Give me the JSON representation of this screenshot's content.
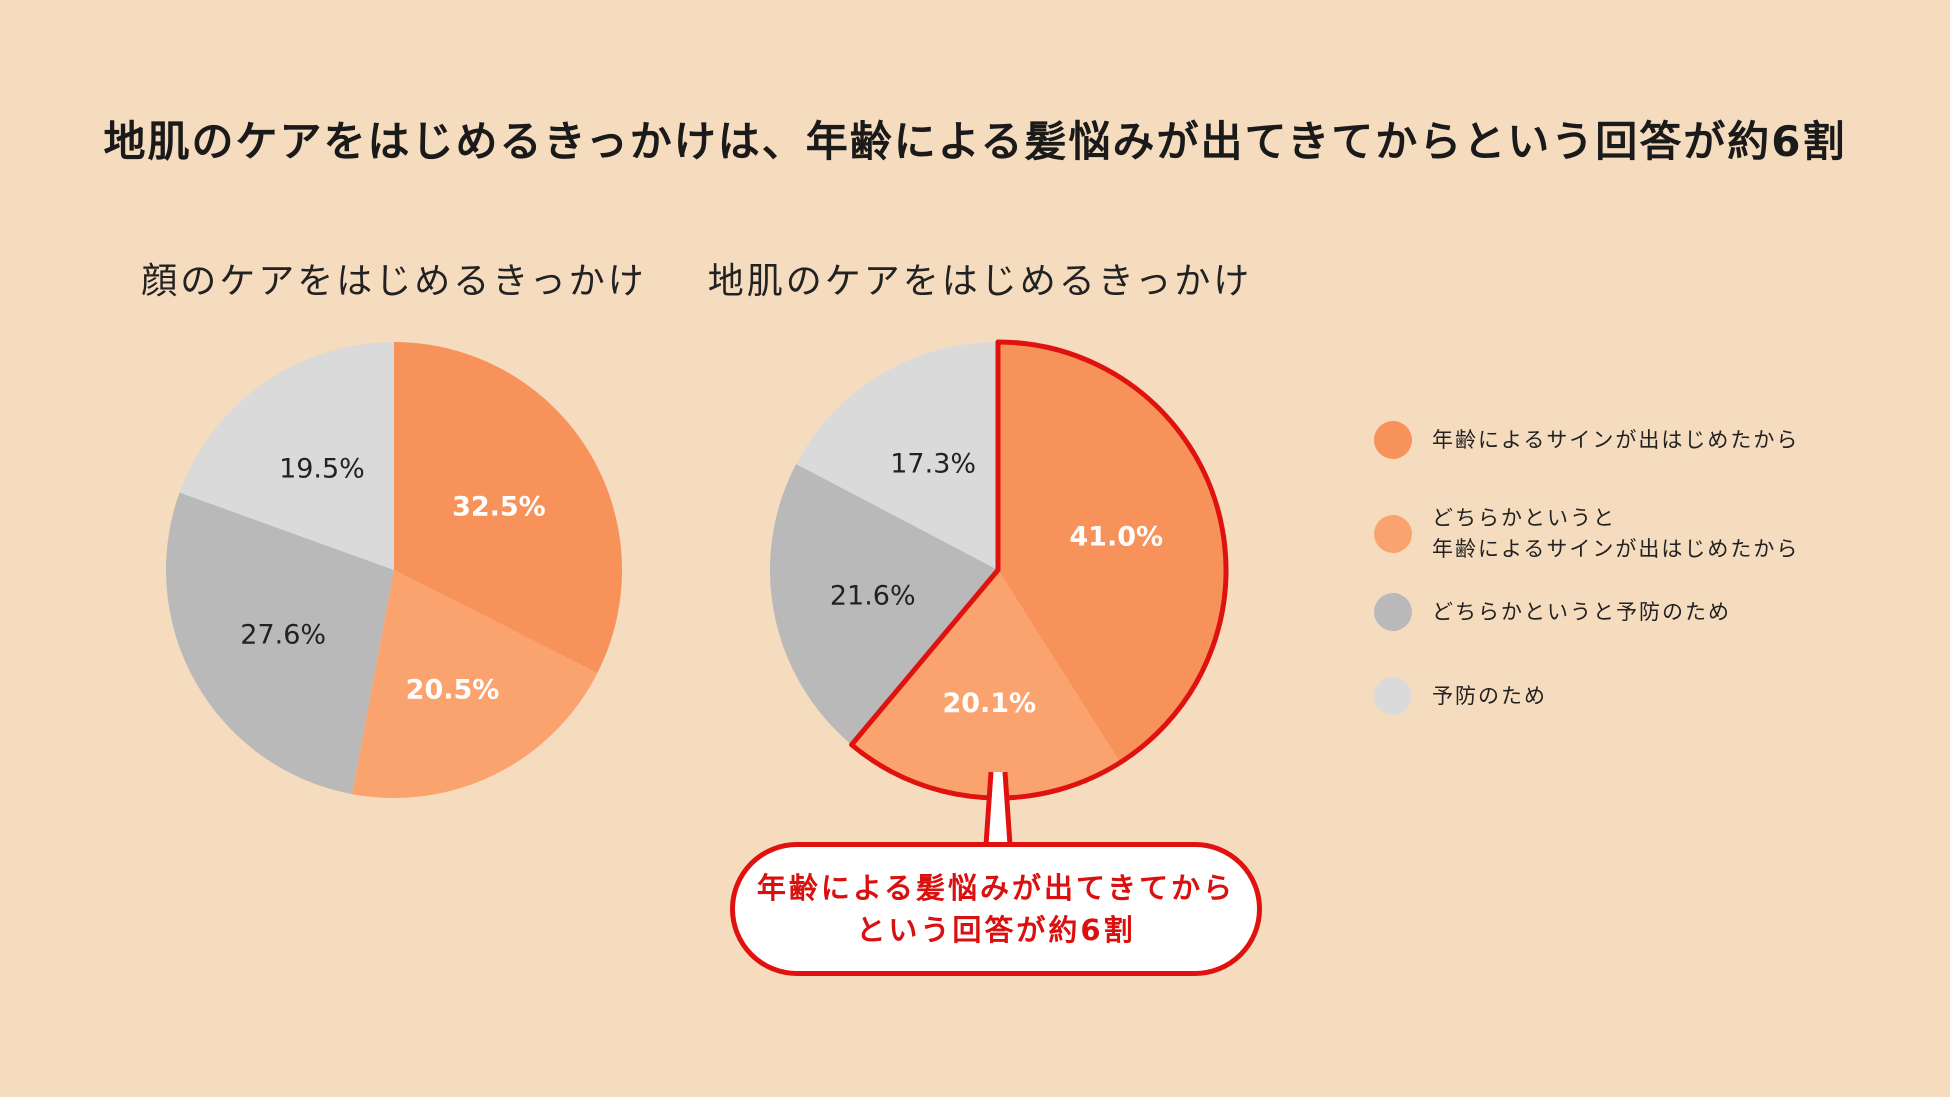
{
  "title": "地肌のケアをはじめるきっかけは、年齢による髪悩みが出てきてからという回答が約6割",
  "chart_data": [
    {
      "type": "pie",
      "title": "顔のケアをはじめるきっかけ",
      "labels": [
        "年齢によるサインが出はじめたから",
        "どちらかというと年齢によるサインが出はじめたから",
        "どちらかというと予防のため",
        "予防のため"
      ],
      "values": [
        32.5,
        20.5,
        27.6,
        19.5
      ],
      "value_labels": [
        "32.5%",
        "20.5%",
        "27.6%",
        "19.5%"
      ],
      "colors": [
        "#f7925a",
        "#fba36f",
        "#b9b9b9",
        "#dadada"
      ]
    },
    {
      "type": "pie",
      "title": "地肌のケアをはじめるきっかけ",
      "labels": [
        "年齢によるサインが出はじめたから",
        "どちらかというと年齢によるサインが出はじめたから",
        "どちらかというと予防のため",
        "予防のため"
      ],
      "values": [
        41.0,
        20.1,
        21.6,
        17.3
      ],
      "value_labels": [
        "41.0%",
        "20.1%",
        "21.6%",
        "17.3%"
      ],
      "colors": [
        "#f7925a",
        "#fba36f",
        "#b9b9b9",
        "#dadada"
      ],
      "highlight_color": "#e0120f"
    }
  ],
  "legend": [
    {
      "line1": "年齢によるサインが出はじめたから",
      "line2": "",
      "color": "#f7925a"
    },
    {
      "line1": "どちらかというと",
      "line2": "年齢によるサインが出はじめたから",
      "color": "#fba36f"
    },
    {
      "line1": "どちらかというと予防のため",
      "line2": "",
      "color": "#b9b9b9"
    },
    {
      "line1": "予防のため",
      "line2": "",
      "color": "#dadada"
    }
  ],
  "callout": {
    "line1": "年齢による髪悩みが出てきてから",
    "line2": "という回答が約6割"
  }
}
